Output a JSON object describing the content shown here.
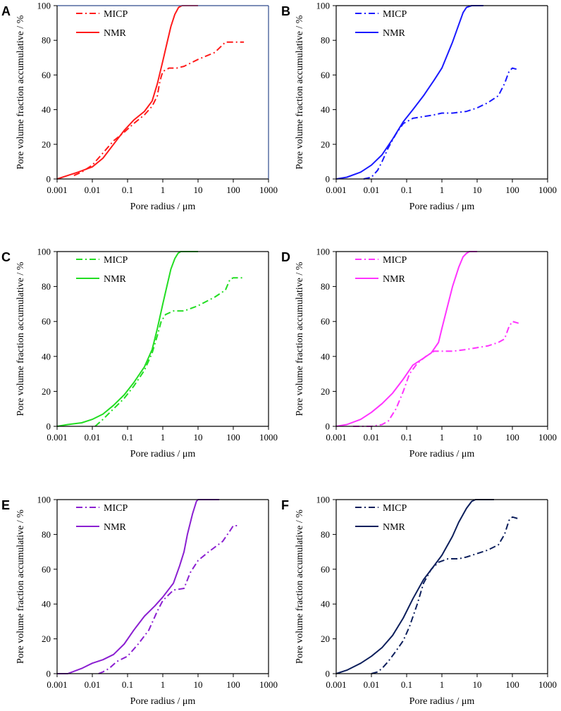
{
  "figure": {
    "x_axis_title": "Pore radius / μm",
    "y_axis_title": "Pore volume fraction accumulative / %",
    "x_ticks": [
      "0.001",
      "0.01",
      "0.1",
      "1",
      "10",
      "100",
      "1000"
    ],
    "y_ticks": [
      "0",
      "20",
      "40",
      "60",
      "80",
      "100"
    ]
  },
  "chart_data": [
    {
      "type": "line",
      "panel": "A",
      "xscale": "log",
      "xlim": [
        0.001,
        1000
      ],
      "ylim": [
        0,
        100
      ],
      "xlabel": "Pore radius / μm",
      "ylabel": "Pore volume fraction accumulative / %",
      "legend_position": "top-left",
      "frame_color": "#2e4a8c",
      "series": [
        {
          "name": "MICP",
          "style": "dashdot",
          "color": "#ff1a1a",
          "x": [
            0.003,
            0.005,
            0.01,
            0.02,
            0.04,
            0.08,
            0.15,
            0.3,
            0.5,
            0.7,
            0.8,
            0.9,
            1.0,
            1.5,
            2.5,
            4,
            10,
            30,
            60,
            100,
            200
          ],
          "y": [
            2,
            4,
            8,
            15,
            22,
            27,
            32,
            37,
            42,
            48,
            55,
            59,
            62,
            64,
            64,
            65,
            69,
            73,
            79,
            79,
            79
          ]
        },
        {
          "name": "NMR",
          "style": "solid",
          "color": "#ff1a1a",
          "x": [
            0.001,
            0.002,
            0.004,
            0.01,
            0.02,
            0.04,
            0.08,
            0.15,
            0.3,
            0.5,
            0.7,
            1.0,
            1.3,
            1.7,
            2.2,
            2.8,
            3.5,
            5,
            10
          ],
          "y": [
            0,
            2,
            4,
            7,
            12,
            20,
            28,
            34,
            39,
            45,
            55,
            68,
            78,
            88,
            95,
            99,
            100,
            100,
            100
          ]
        }
      ]
    },
    {
      "type": "line",
      "panel": "B",
      "xscale": "log",
      "xlim": [
        0.001,
        1000
      ],
      "ylim": [
        0,
        100
      ],
      "xlabel": "Pore radius / μm",
      "ylabel": "Pore volume fraction accumulative / %",
      "legend_position": "top-left",
      "frame_color": "#000000",
      "series": [
        {
          "name": "MICP",
          "style": "dashdot",
          "color": "#1a1aff",
          "x": [
            0.006,
            0.01,
            0.015,
            0.02,
            0.03,
            0.05,
            0.08,
            0.15,
            0.3,
            0.6,
            1,
            2,
            5,
            10,
            20,
            40,
            60,
            80,
            100,
            150
          ],
          "y": [
            0,
            1,
            5,
            10,
            18,
            26,
            32,
            35,
            36,
            37,
            38,
            38,
            39,
            41,
            44,
            48,
            55,
            62,
            64,
            63
          ]
        },
        {
          "name": "NMR",
          "style": "solid",
          "color": "#1a1aff",
          "x": [
            0.001,
            0.002,
            0.005,
            0.01,
            0.02,
            0.04,
            0.08,
            0.15,
            0.3,
            0.6,
            1,
            2,
            3,
            4,
            5,
            7,
            15
          ],
          "y": [
            0,
            1,
            4,
            8,
            14,
            23,
            33,
            40,
            48,
            57,
            64,
            79,
            89,
            96,
            99,
            100,
            100
          ]
        }
      ]
    },
    {
      "type": "line",
      "panel": "C",
      "xscale": "log",
      "xlim": [
        0.001,
        1000
      ],
      "ylim": [
        0,
        100
      ],
      "xlabel": "Pore radius / μm",
      "ylabel": "Pore volume fraction accumulative / %",
      "legend_position": "top-left",
      "frame_color": "#000000",
      "series": [
        {
          "name": "MICP",
          "style": "dashdot",
          "color": "#22dd22",
          "x": [
            0.012,
            0.02,
            0.04,
            0.08,
            0.15,
            0.3,
            0.5,
            0.7,
            0.9,
            1.2,
            2,
            4,
            10,
            30,
            60,
            80,
            100,
            200
          ],
          "y": [
            0,
            4,
            10,
            16,
            23,
            32,
            42,
            52,
            60,
            64,
            66,
            66,
            69,
            74,
            78,
            84,
            85,
            85
          ]
        },
        {
          "name": "NMR",
          "style": "solid",
          "color": "#22dd22",
          "x": [
            0.001,
            0.002,
            0.005,
            0.01,
            0.02,
            0.04,
            0.08,
            0.15,
            0.3,
            0.5,
            0.7,
            1.0,
            1.3,
            1.7,
            2.2,
            2.7,
            3.2,
            4,
            10
          ],
          "y": [
            0,
            1,
            2,
            4,
            7,
            12,
            18,
            25,
            34,
            44,
            56,
            70,
            80,
            90,
            96,
            99,
            100,
            100,
            100
          ]
        }
      ]
    },
    {
      "type": "line",
      "panel": "D",
      "xscale": "log",
      "xlim": [
        0.001,
        1000
      ],
      "ylim": [
        0,
        100
      ],
      "xlabel": "Pore radius / μm",
      "ylabel": "Pore volume fraction accumulative / %",
      "legend_position": "top-left",
      "frame_color": "#000000",
      "series": [
        {
          "name": "MICP",
          "style": "dashdot",
          "color": "#ff33ff",
          "x": [
            0.003,
            0.01,
            0.02,
            0.03,
            0.05,
            0.08,
            0.12,
            0.2,
            0.35,
            0.6,
            1,
            2,
            5,
            10,
            20,
            40,
            60,
            80,
            100,
            150
          ],
          "y": [
            0,
            0,
            1,
            3,
            10,
            20,
            30,
            36,
            40,
            43,
            43,
            43,
            44,
            45,
            46,
            48,
            50,
            57,
            60,
            59
          ]
        },
        {
          "name": "NMR",
          "style": "solid",
          "color": "#ff33ff",
          "x": [
            0.001,
            0.002,
            0.005,
            0.01,
            0.02,
            0.04,
            0.08,
            0.15,
            0.3,
            0.5,
            0.8,
            1.0,
            1.5,
            2,
            3,
            4,
            5,
            6,
            10
          ],
          "y": [
            0,
            1,
            4,
            8,
            13,
            19,
            27,
            35,
            39,
            42,
            48,
            56,
            70,
            80,
            91,
            97,
            99,
            100,
            100
          ]
        }
      ]
    },
    {
      "type": "line",
      "panel": "E",
      "xscale": "log",
      "xlim": [
        0.001,
        1000
      ],
      "ylim": [
        0,
        100
      ],
      "xlabel": "Pore radius / μm",
      "ylabel": "Pore volume fraction accumulative / %",
      "legend_position": "top-left",
      "frame_color": "#000000",
      "series": [
        {
          "name": "MICP",
          "style": "dashdot",
          "color": "#8b1fd1",
          "x": [
            0.015,
            0.02,
            0.03,
            0.05,
            0.1,
            0.2,
            0.4,
            0.7,
            1,
            2,
            4,
            6,
            10,
            20,
            50,
            80,
            100,
            150
          ],
          "y": [
            0,
            1,
            3,
            7,
            10,
            17,
            25,
            36,
            42,
            48,
            49,
            58,
            65,
            70,
            76,
            82,
            85,
            85
          ]
        },
        {
          "name": "NMR",
          "style": "solid",
          "color": "#8b1fd1",
          "x": [
            0.001,
            0.002,
            0.005,
            0.01,
            0.02,
            0.04,
            0.08,
            0.15,
            0.3,
            0.6,
            1,
            2,
            3,
            4,
            5,
            7,
            9,
            10,
            40
          ],
          "y": [
            0,
            0,
            3,
            6,
            8,
            11,
            17,
            25,
            33,
            39,
            44,
            52,
            62,
            70,
            80,
            92,
            99,
            100,
            100
          ]
        }
      ]
    },
    {
      "type": "line",
      "panel": "F",
      "xscale": "log",
      "xlim": [
        0.001,
        1000
      ],
      "ylim": [
        0,
        100
      ],
      "xlabel": "Pore radius / μm",
      "ylabel": "Pore volume fraction accumulative / %",
      "legend_position": "top-left",
      "frame_color": "#000000",
      "series": [
        {
          "name": "MICP",
          "style": "dashdot",
          "color": "#0d1f5c",
          "x": [
            0.01,
            0.015,
            0.02,
            0.03,
            0.05,
            0.08,
            0.12,
            0.2,
            0.3,
            0.5,
            0.8,
            1.5,
            3,
            5,
            10,
            20,
            40,
            60,
            80,
            100,
            150
          ],
          "y": [
            0,
            1,
            3,
            7,
            13,
            19,
            27,
            40,
            52,
            60,
            64,
            66,
            66,
            67,
            69,
            71,
            74,
            80,
            88,
            90,
            89
          ]
        },
        {
          "name": "NMR",
          "style": "solid",
          "color": "#0d1f5c",
          "x": [
            0.001,
            0.002,
            0.005,
            0.01,
            0.02,
            0.04,
            0.08,
            0.15,
            0.3,
            0.6,
            1,
            2,
            3,
            5,
            7,
            9,
            12,
            30
          ],
          "y": [
            0,
            2,
            6,
            10,
            15,
            22,
            32,
            43,
            54,
            62,
            68,
            79,
            87,
            95,
            99,
            100,
            100,
            100
          ]
        }
      ]
    }
  ]
}
